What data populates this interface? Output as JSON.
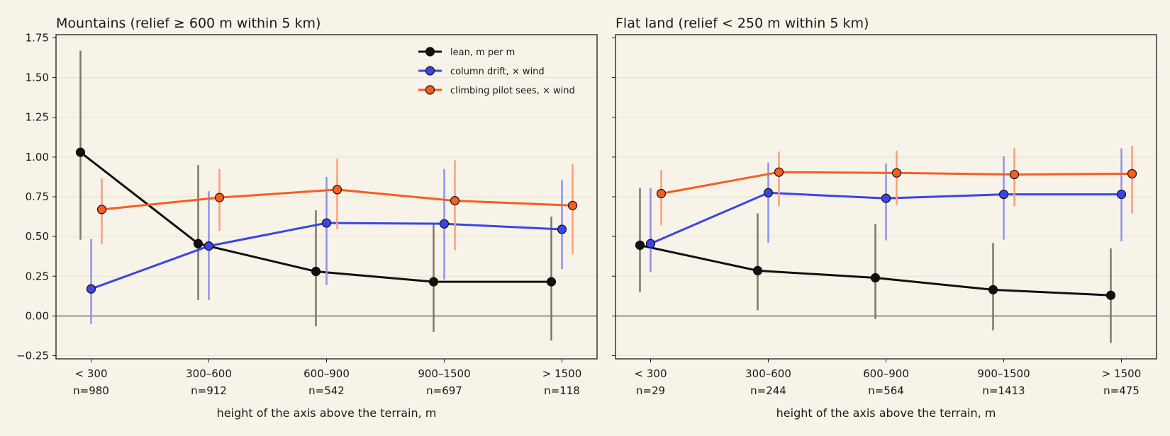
{
  "colors": {
    "background": "#f8f3e8",
    "lean": "#111111",
    "lean_err": "#7a7868",
    "drift": "#3b45e6",
    "drift_err": "#8d93ee",
    "climb": "#f55d23",
    "climb_err": "#f7a07a",
    "grid": "#e2dccb"
  },
  "legend": {
    "lean": "lean, m per m",
    "drift": "column drift, × wind",
    "climb": "climbing pilot sees, × wind"
  },
  "chart_data": [
    {
      "type": "line",
      "title": "Mountains (relief ≥ 600 m within 5 km)",
      "xlabel": "height of the axis above the terrain, m",
      "ylabel": "",
      "ylim": [
        -0.27,
        1.77
      ],
      "yticks": [
        "−0.25",
        "0.00",
        "0.25",
        "0.50",
        "0.75",
        "1.00",
        "1.25",
        "1.50",
        "1.75"
      ],
      "categories": [
        "< 300",
        "300–600",
        "600–900",
        "900–1500",
        "> 1500"
      ],
      "counts": [
        "n=980",
        "n=912",
        "n=542",
        "n=697",
        "n=118"
      ],
      "legend_position": "top-right",
      "grid": true,
      "series": [
        {
          "key": "lean",
          "name": "lean, m per m",
          "values": [
            1.03,
            0.455,
            0.28,
            0.215,
            0.215
          ],
          "low": [
            0.48,
            0.1,
            -0.065,
            -0.1,
            -0.155
          ],
          "high": [
            1.67,
            0.95,
            0.665,
            0.575,
            0.625
          ]
        },
        {
          "key": "drift",
          "name": "column drift, × wind",
          "values": [
            0.17,
            0.44,
            0.585,
            0.58,
            0.545
          ],
          "low": [
            -0.05,
            0.1,
            0.195,
            0.23,
            0.295
          ],
          "high": [
            0.485,
            0.785,
            0.875,
            0.925,
            0.855
          ]
        },
        {
          "key": "climb",
          "name": "climbing pilot sees, × wind",
          "values": [
            0.67,
            0.745,
            0.795,
            0.725,
            0.695
          ],
          "low": [
            0.45,
            0.535,
            0.545,
            0.415,
            0.39
          ],
          "high": [
            0.865,
            0.925,
            0.99,
            0.98,
            0.955
          ]
        }
      ]
    },
    {
      "type": "line",
      "title": "Flat land (relief < 250 m within 5 km)",
      "xlabel": "height of the axis above the terrain, m",
      "ylabel": "",
      "ylim": [
        -0.27,
        1.77
      ],
      "categories": [
        "< 300",
        "300–600",
        "600–900",
        "900–1500",
        "> 1500"
      ],
      "counts": [
        "n=29",
        "n=244",
        "n=564",
        "n=1413",
        "n=475"
      ],
      "grid": true,
      "series": [
        {
          "key": "lean",
          "name": "lean, m per m",
          "values": [
            0.445,
            0.285,
            0.24,
            0.165,
            0.13
          ],
          "low": [
            0.15,
            0.035,
            -0.02,
            -0.09,
            -0.17
          ],
          "high": [
            0.805,
            0.645,
            0.58,
            0.46,
            0.425
          ]
        },
        {
          "key": "drift",
          "name": "column drift, × wind",
          "values": [
            0.455,
            0.775,
            0.74,
            0.765,
            0.765
          ],
          "low": [
            0.275,
            0.46,
            0.475,
            0.48,
            0.47
          ],
          "high": [
            0.805,
            0.965,
            0.96,
            1.005,
            1.055
          ]
        },
        {
          "key": "climb",
          "name": "climbing pilot sees, × wind",
          "values": [
            0.77,
            0.905,
            0.9,
            0.89,
            0.895
          ],
          "low": [
            0.57,
            0.69,
            0.7,
            0.69,
            0.645
          ],
          "high": [
            0.92,
            1.035,
            1.04,
            1.055,
            1.07
          ]
        }
      ]
    }
  ]
}
